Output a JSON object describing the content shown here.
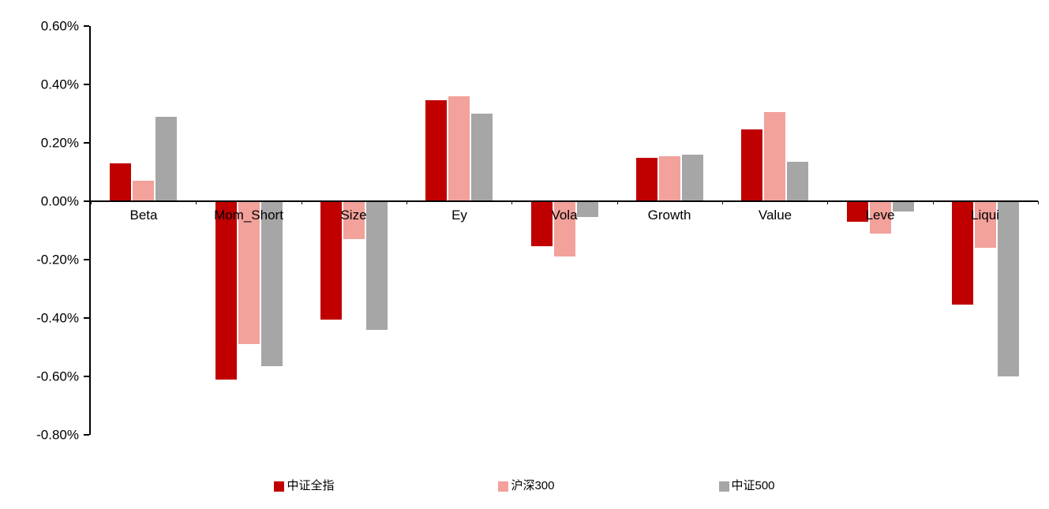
{
  "chart_data": {
    "type": "bar",
    "title": "",
    "xlabel": "",
    "ylabel": "",
    "categories": [
      "Beta",
      "Mom_Short",
      "Size",
      "Ey",
      "Vola",
      "Growth",
      "Value",
      "Leve",
      "Liqui"
    ],
    "series": [
      {
        "name": "中证全指",
        "color": "#C00000",
        "values": [
          0.13,
          -0.61,
          -0.405,
          0.345,
          -0.155,
          0.15,
          0.245,
          -0.07,
          -0.355
        ]
      },
      {
        "name": "沪深300",
        "color": "#F2A19B",
        "values": [
          0.07,
          -0.49,
          -0.13,
          0.36,
          -0.19,
          0.155,
          0.305,
          -0.11,
          -0.16
        ]
      },
      {
        "name": "中证500",
        "color": "#A6A6A6",
        "values": [
          0.29,
          -0.565,
          -0.44,
          0.3,
          -0.055,
          0.16,
          0.135,
          -0.035,
          -0.6
        ]
      }
    ],
    "y_ticks": [
      "0.60%",
      "0.40%",
      "0.20%",
      "0.00%",
      "-0.20%",
      "-0.40%",
      "-0.60%",
      "-0.80%"
    ],
    "ylim": [
      -0.8,
      0.6
    ],
    "y_tick_step": 0.2,
    "unit": "%",
    "grid": false,
    "legend_position": "bottom",
    "axis_color": "#000000",
    "background_color": "#ffffff"
  }
}
